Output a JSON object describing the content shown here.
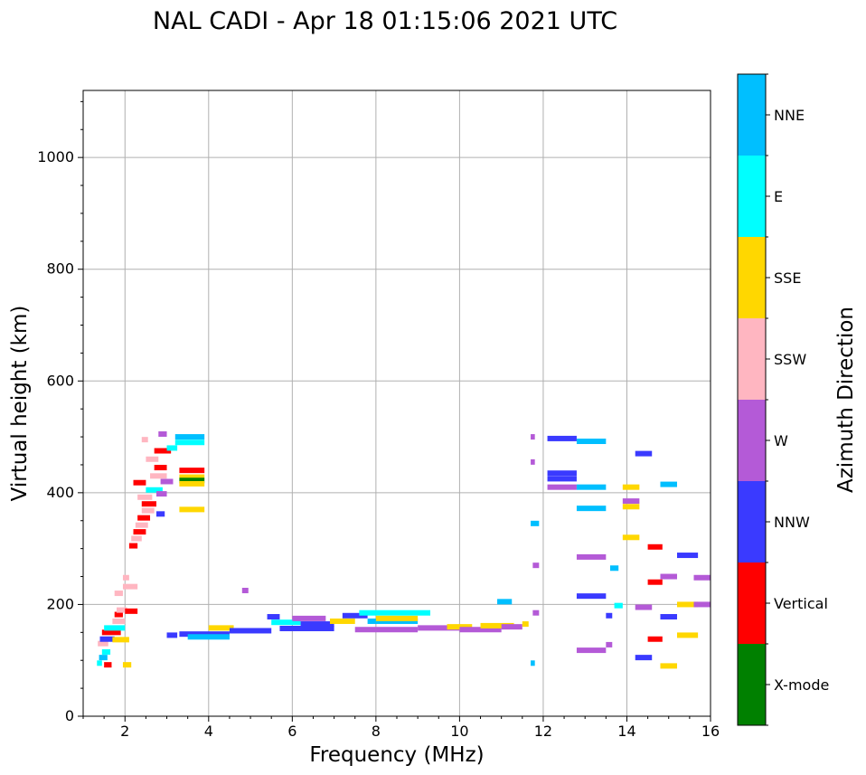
{
  "chart_data": {
    "type": "scatter",
    "title": "NAL CADI - Apr 18 01:15:06 2021 UTC",
    "xlabel": "Frequency (MHz)",
    "ylabel": "Virtual height (km)",
    "xlim": [
      1,
      16
    ],
    "ylim": [
      0,
      1120
    ],
    "xticks": [
      2,
      4,
      6,
      8,
      10,
      12,
      14,
      16
    ],
    "yticks": [
      0,
      200,
      400,
      600,
      800,
      1000
    ],
    "grid": true,
    "colorbar": {
      "title": "Azimuth Direction",
      "categories": [
        {
          "name": "X-mode",
          "color": "#008000"
        },
        {
          "name": "Vertical",
          "color": "#ff0000"
        },
        {
          "name": "NNW",
          "color": "#3a3aff"
        },
        {
          "name": "W",
          "color": "#b45ad7"
        },
        {
          "name": "SSW",
          "color": "#ffb6c1"
        },
        {
          "name": "SSE",
          "color": "#ffd700"
        },
        {
          "name": "E",
          "color": "#00ffff"
        },
        {
          "name": "NNE",
          "color": "#00bfff"
        }
      ]
    },
    "segments": [
      {
        "x1": 1.33,
        "x2": 1.45,
        "y": 95,
        "dir": "E"
      },
      {
        "x1": 1.38,
        "x2": 1.58,
        "y": 105,
        "dir": "NNE"
      },
      {
        "x1": 1.45,
        "x2": 1.65,
        "y": 115,
        "dir": "E"
      },
      {
        "x1": 1.5,
        "x2": 1.68,
        "y": 92,
        "dir": "Vertical"
      },
      {
        "x1": 1.35,
        "x2": 1.6,
        "y": 130,
        "dir": "SSW"
      },
      {
        "x1": 1.4,
        "x2": 1.75,
        "y": 138,
        "dir": "NNW"
      },
      {
        "x1": 1.7,
        "x2": 2.1,
        "y": 137,
        "dir": "SSE"
      },
      {
        "x1": 1.45,
        "x2": 1.9,
        "y": 150,
        "dir": "Vertical"
      },
      {
        "x1": 1.5,
        "x2": 2.0,
        "y": 158,
        "dir": "E"
      },
      {
        "x1": 1.7,
        "x2": 2.0,
        "y": 170,
        "dir": "SSW"
      },
      {
        "x1": 1.75,
        "x2": 1.95,
        "y": 182,
        "dir": "Vertical"
      },
      {
        "x1": 1.8,
        "x2": 2.05,
        "y": 190,
        "dir": "SSW"
      },
      {
        "x1": 1.75,
        "x2": 1.95,
        "y": 220,
        "dir": "SSW"
      },
      {
        "x1": 1.95,
        "x2": 2.3,
        "y": 232,
        "dir": "SSW"
      },
      {
        "x1": 1.95,
        "x2": 2.1,
        "y": 248,
        "dir": "SSW"
      },
      {
        "x1": 2.0,
        "x2": 2.3,
        "y": 188,
        "dir": "Vertical"
      },
      {
        "x1": 2.1,
        "x2": 2.3,
        "y": 305,
        "dir": "Vertical"
      },
      {
        "x1": 2.15,
        "x2": 2.4,
        "y": 318,
        "dir": "SSW"
      },
      {
        "x1": 2.2,
        "x2": 2.5,
        "y": 330,
        "dir": "Vertical"
      },
      {
        "x1": 2.25,
        "x2": 2.55,
        "y": 342,
        "dir": "SSW"
      },
      {
        "x1": 2.3,
        "x2": 2.6,
        "y": 355,
        "dir": "Vertical"
      },
      {
        "x1": 2.4,
        "x2": 2.7,
        "y": 368,
        "dir": "SSW"
      },
      {
        "x1": 2.4,
        "x2": 2.75,
        "y": 380,
        "dir": "Vertical"
      },
      {
        "x1": 2.3,
        "x2": 2.65,
        "y": 392,
        "dir": "SSW"
      },
      {
        "x1": 2.5,
        "x2": 2.9,
        "y": 405,
        "dir": "E"
      },
      {
        "x1": 2.2,
        "x2": 2.5,
        "y": 418,
        "dir": "Vertical"
      },
      {
        "x1": 2.6,
        "x2": 3.0,
        "y": 430,
        "dir": "SSW"
      },
      {
        "x1": 2.7,
        "x2": 3.0,
        "y": 445,
        "dir": "Vertical"
      },
      {
        "x1": 2.5,
        "x2": 2.8,
        "y": 460,
        "dir": "SSW"
      },
      {
        "x1": 2.7,
        "x2": 3.1,
        "y": 475,
        "dir": "Vertical"
      },
      {
        "x1": 2.4,
        "x2": 2.55,
        "y": 495,
        "dir": "SSW"
      },
      {
        "x1": 2.8,
        "x2": 3.0,
        "y": 505,
        "dir": "W"
      },
      {
        "x1": 2.75,
        "x2": 2.95,
        "y": 362,
        "dir": "NNW"
      },
      {
        "x1": 2.75,
        "x2": 3.0,
        "y": 398,
        "dir": "W"
      },
      {
        "x1": 2.85,
        "x2": 3.15,
        "y": 420,
        "dir": "W"
      },
      {
        "x1": 3.0,
        "x2": 3.25,
        "y": 480,
        "dir": "E"
      },
      {
        "x1": 3.2,
        "x2": 3.9,
        "y": 500,
        "dir": "NNE"
      },
      {
        "x1": 3.2,
        "x2": 3.9,
        "y": 490,
        "dir": "E"
      },
      {
        "x1": 3.3,
        "x2": 3.9,
        "y": 440,
        "dir": "Vertical"
      },
      {
        "x1": 3.3,
        "x2": 3.9,
        "y": 428,
        "dir": "SSE"
      },
      {
        "x1": 3.3,
        "x2": 3.9,
        "y": 422,
        "dir": "X-mode"
      },
      {
        "x1": 3.3,
        "x2": 3.9,
        "y": 416,
        "dir": "SSE"
      },
      {
        "x1": 3.3,
        "x2": 3.9,
        "y": 370,
        "dir": "SSE"
      },
      {
        "x1": 1.95,
        "x2": 2.15,
        "y": 92,
        "dir": "SSE"
      },
      {
        "x1": 3.0,
        "x2": 3.25,
        "y": 145,
        "dir": "NNW"
      },
      {
        "x1": 3.3,
        "x2": 4.5,
        "y": 147,
        "dir": "NNW"
      },
      {
        "x1": 3.5,
        "x2": 4.5,
        "y": 142,
        "dir": "NNE"
      },
      {
        "x1": 4.0,
        "x2": 4.6,
        "y": 158,
        "dir": "SSE"
      },
      {
        "x1": 4.5,
        "x2": 5.5,
        "y": 153,
        "dir": "NNW"
      },
      {
        "x1": 4.8,
        "x2": 4.95,
        "y": 225,
        "dir": "W"
      },
      {
        "x1": 5.4,
        "x2": 5.7,
        "y": 178,
        "dir": "NNW"
      },
      {
        "x1": 5.7,
        "x2": 7.0,
        "y": 157,
        "dir": "NNW"
      },
      {
        "x1": 5.5,
        "x2": 6.2,
        "y": 168,
        "dir": "E"
      },
      {
        "x1": 6.0,
        "x2": 6.8,
        "y": 175,
        "dir": "W"
      },
      {
        "x1": 6.2,
        "x2": 7.0,
        "y": 165,
        "dir": "NNW"
      },
      {
        "x1": 6.9,
        "x2": 7.5,
        "y": 170,
        "dir": "SSE"
      },
      {
        "x1": 7.2,
        "x2": 7.8,
        "y": 180,
        "dir": "NNW"
      },
      {
        "x1": 7.6,
        "x2": 8.5,
        "y": 185,
        "dir": "E"
      },
      {
        "x1": 7.8,
        "x2": 9.0,
        "y": 170,
        "dir": "NNE"
      },
      {
        "x1": 7.5,
        "x2": 9.0,
        "y": 155,
        "dir": "W"
      },
      {
        "x1": 8.0,
        "x2": 9.0,
        "y": 175,
        "dir": "SSE"
      },
      {
        "x1": 8.5,
        "x2": 9.3,
        "y": 185,
        "dir": "E"
      },
      {
        "x1": 9.0,
        "x2": 10.0,
        "y": 158,
        "dir": "W"
      },
      {
        "x1": 9.7,
        "x2": 10.3,
        "y": 160,
        "dir": "SSE"
      },
      {
        "x1": 10.0,
        "x2": 11.0,
        "y": 155,
        "dir": "W"
      },
      {
        "x1": 10.5,
        "x2": 11.3,
        "y": 162,
        "dir": "SSE"
      },
      {
        "x1": 11.0,
        "x2": 11.5,
        "y": 160,
        "dir": "W"
      },
      {
        "x1": 11.5,
        "x2": 11.65,
        "y": 165,
        "dir": "SSE"
      },
      {
        "x1": 10.9,
        "x2": 11.25,
        "y": 205,
        "dir": "NNE"
      },
      {
        "x1": 11.7,
        "x2": 11.8,
        "y": 500,
        "dir": "W"
      },
      {
        "x1": 11.7,
        "x2": 11.8,
        "y": 455,
        "dir": "W"
      },
      {
        "x1": 11.7,
        "x2": 11.9,
        "y": 345,
        "dir": "NNE"
      },
      {
        "x1": 11.75,
        "x2": 11.9,
        "y": 270,
        "dir": "W"
      },
      {
        "x1": 11.75,
        "x2": 11.9,
        "y": 185,
        "dir": "W"
      },
      {
        "x1": 11.7,
        "x2": 11.8,
        "y": 95,
        "dir": "NNE"
      },
      {
        "x1": 12.1,
        "x2": 12.8,
        "y": 497,
        "dir": "NNW"
      },
      {
        "x1": 12.1,
        "x2": 12.8,
        "y": 435,
        "dir": "NNW"
      },
      {
        "x1": 12.1,
        "x2": 12.8,
        "y": 425,
        "dir": "NNW"
      },
      {
        "x1": 12.1,
        "x2": 12.8,
        "y": 410,
        "dir": "W"
      },
      {
        "x1": 12.8,
        "x2": 13.5,
        "y": 492,
        "dir": "NNE"
      },
      {
        "x1": 12.8,
        "x2": 13.5,
        "y": 410,
        "dir": "NNE"
      },
      {
        "x1": 12.8,
        "x2": 13.5,
        "y": 372,
        "dir": "NNE"
      },
      {
        "x1": 12.8,
        "x2": 13.5,
        "y": 285,
        "dir": "W"
      },
      {
        "x1": 12.8,
        "x2": 13.5,
        "y": 215,
        "dir": "NNW"
      },
      {
        "x1": 12.8,
        "x2": 13.5,
        "y": 118,
        "dir": "W"
      },
      {
        "x1": 13.6,
        "x2": 13.8,
        "y": 265,
        "dir": "NNE"
      },
      {
        "x1": 13.7,
        "x2": 13.9,
        "y": 198,
        "dir": "E"
      },
      {
        "x1": 13.5,
        "x2": 13.65,
        "y": 180,
        "dir": "NNW"
      },
      {
        "x1": 13.5,
        "x2": 13.65,
        "y": 128,
        "dir": "W"
      },
      {
        "x1": 13.9,
        "x2": 14.3,
        "y": 410,
        "dir": "SSE"
      },
      {
        "x1": 13.9,
        "x2": 14.3,
        "y": 385,
        "dir": "W"
      },
      {
        "x1": 13.9,
        "x2": 14.3,
        "y": 375,
        "dir": "SSE"
      },
      {
        "x1": 13.9,
        "x2": 14.3,
        "y": 320,
        "dir": "SSE"
      },
      {
        "x1": 14.2,
        "x2": 14.6,
        "y": 470,
        "dir": "NNW"
      },
      {
        "x1": 14.2,
        "x2": 14.6,
        "y": 195,
        "dir": "W"
      },
      {
        "x1": 14.2,
        "x2": 14.6,
        "y": 105,
        "dir": "NNW"
      },
      {
        "x1": 14.5,
        "x2": 14.85,
        "y": 303,
        "dir": "Vertical"
      },
      {
        "x1": 14.5,
        "x2": 14.85,
        "y": 240,
        "dir": "Vertical"
      },
      {
        "x1": 14.5,
        "x2": 14.85,
        "y": 138,
        "dir": "Vertical"
      },
      {
        "x1": 14.8,
        "x2": 15.2,
        "y": 415,
        "dir": "NNE"
      },
      {
        "x1": 14.8,
        "x2": 15.2,
        "y": 250,
        "dir": "W"
      },
      {
        "x1": 14.8,
        "x2": 15.2,
        "y": 178,
        "dir": "NNW"
      },
      {
        "x1": 14.8,
        "x2": 15.2,
        "y": 90,
        "dir": "SSE"
      },
      {
        "x1": 15.2,
        "x2": 15.7,
        "y": 288,
        "dir": "NNW"
      },
      {
        "x1": 15.2,
        "x2": 15.7,
        "y": 200,
        "dir": "SSE"
      },
      {
        "x1": 15.2,
        "x2": 15.7,
        "y": 145,
        "dir": "SSE"
      },
      {
        "x1": 15.6,
        "x2": 16.0,
        "y": 248,
        "dir": "W"
      },
      {
        "x1": 15.6,
        "x2": 16.0,
        "y": 200,
        "dir": "W"
      }
    ]
  }
}
